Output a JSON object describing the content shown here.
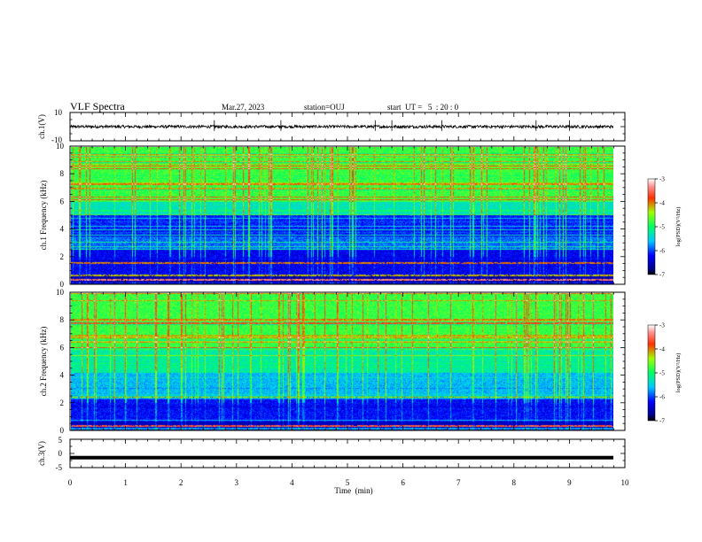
{
  "header": {
    "title": "VLF Spectra",
    "date": "Mar.27, 2023",
    "station": "station=OUJ",
    "start_ut": "start  UT =   5  : 20 : 0"
  },
  "chart_data": [
    {
      "type": "line",
      "name": "ch1-waveform",
      "ylabel": "ch.1(V)",
      "xlim": [
        0,
        10
      ],
      "ylim": [
        -10,
        10
      ],
      "y_ticks": [
        10,
        -10
      ],
      "trace_level": 0,
      "trace_amplitude": 1.0,
      "spikes_at_min": [
        2.6,
        3.8,
        5.5,
        5.8,
        6.7,
        8.4,
        9.0
      ]
    },
    {
      "type": "heatmap",
      "name": "ch1-spectrogram",
      "ylabel": "ch.1 Frequency (kHz)",
      "xlim": [
        0,
        10
      ],
      "ylim": [
        0,
        10
      ],
      "y_ticks": [
        0,
        2,
        4,
        6,
        8,
        10
      ],
      "data_end_min": 9.8,
      "colorbar": {
        "label": "log(PSD)(V²/Hz)",
        "range": [
          -7,
          -3
        ],
        "ticks": [
          -3,
          -4,
          -5,
          -6,
          -7
        ]
      }
    },
    {
      "type": "heatmap",
      "name": "ch2-spectrogram",
      "ylabel": "ch.2 Frequency (kHz)",
      "xlim": [
        0,
        10
      ],
      "ylim": [
        0,
        10
      ],
      "y_ticks": [
        0,
        2,
        4,
        6,
        8,
        10
      ],
      "data_end_min": 9.8,
      "colorbar": {
        "label": "log(PSD)(V²/Hz)",
        "range": [
          -7,
          -3
        ],
        "ticks": [
          -3,
          -4,
          -5,
          -6,
          -7
        ]
      }
    },
    {
      "type": "line",
      "name": "ch3-waveform",
      "ylabel": "ch.3(V)",
      "xlabel": "Time  (min)",
      "xlim": [
        0,
        10
      ],
      "ylim": [
        -5,
        5
      ],
      "y_ticks": [
        5,
        0,
        -5
      ],
      "x_ticks": [
        0,
        1,
        2,
        3,
        4,
        5,
        6,
        7,
        8,
        9,
        10
      ],
      "trace_level": -1.5
    }
  ]
}
